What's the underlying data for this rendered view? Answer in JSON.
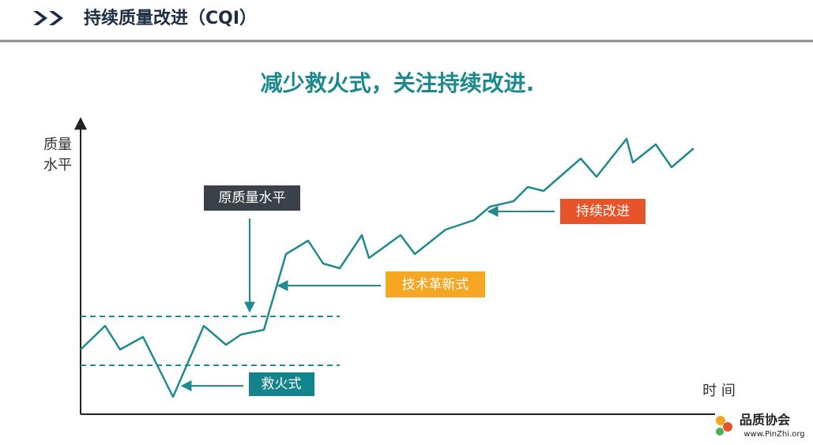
{
  "header": {
    "title": "持续质量改进（CQI）"
  },
  "subtitle": "减少救火式，关注持续改进.",
  "axes": {
    "y_label": [
      "质量",
      "水平"
    ],
    "x_label": "时 间"
  },
  "callouts": {
    "original_level": "原质量水平",
    "innovation": "技术革新式",
    "continuous": "持续改进",
    "firefighting": "救火式"
  },
  "logo": {
    "name": "品质协会",
    "url": "www.PinZhi.org"
  }
}
